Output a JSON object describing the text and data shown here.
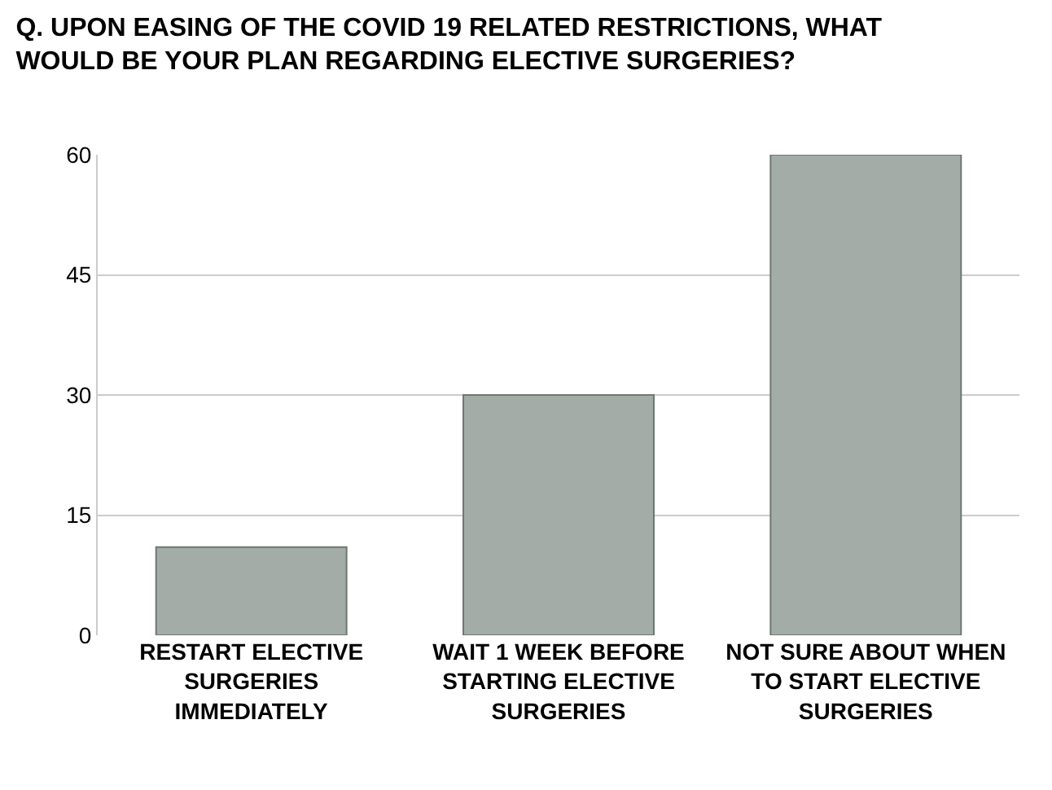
{
  "chart_data": {
    "type": "bar",
    "title": "Q. UPON EASING OF THE COVID 19 RELATED RESTRICTIONS, WHAT WOULD BE YOUR PLAN REGARDING ELECTIVE SURGERIES?",
    "categories": [
      "RESTART ELECTIVE SURGERIES IMMEDIATELY",
      "WAIT 1 WEEK BEFORE STARTING ELECTIVE SURGERIES",
      "NOT SURE ABOUT WHEN TO START ELECTIVE SURGERIES"
    ],
    "values": [
      11,
      30,
      60
    ],
    "color": "#a3aca7",
    "ylim": [
      0,
      60
    ],
    "yticks": [
      0,
      15,
      30,
      45,
      60
    ],
    "grid": "y"
  }
}
